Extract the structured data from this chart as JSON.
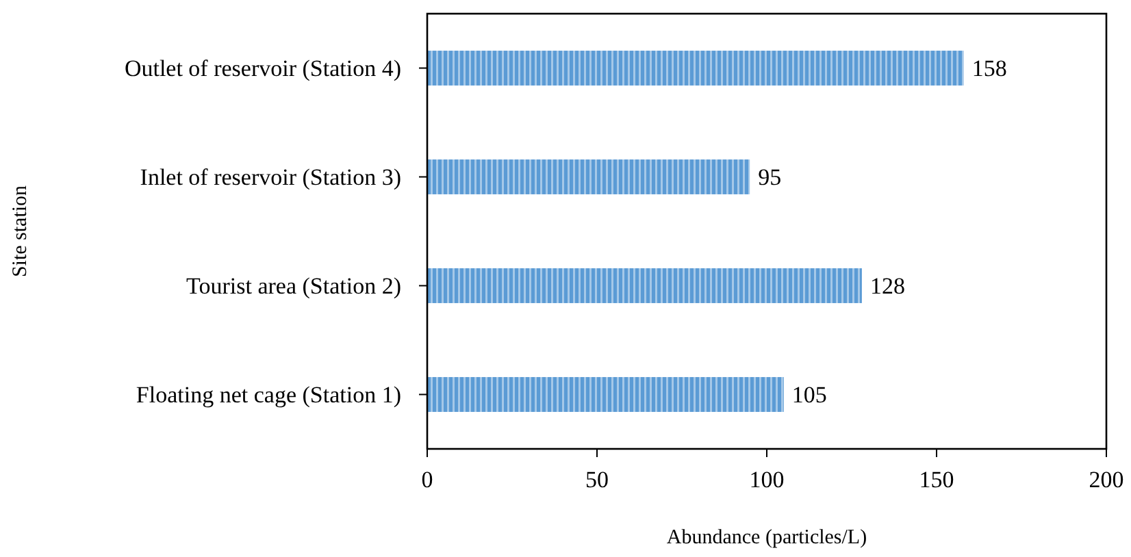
{
  "chart_data": {
    "type": "bar",
    "orientation": "horizontal",
    "xlabel": "Abundance (particles/L)",
    "ylabel": "Site station",
    "categories": [
      "Outlet of reservoir (Station 4)",
      "Inlet of reservoir (Station 3)",
      "Tourist area (Station 2)",
      "Floating net cage (Station 1)"
    ],
    "values": [
      158,
      95,
      128,
      105
    ],
    "color": "#5b9bd5",
    "data_labels": true,
    "xlim": [
      0,
      200
    ],
    "xticks": [
      0,
      50,
      100,
      150,
      200
    ],
    "grid": false
  }
}
